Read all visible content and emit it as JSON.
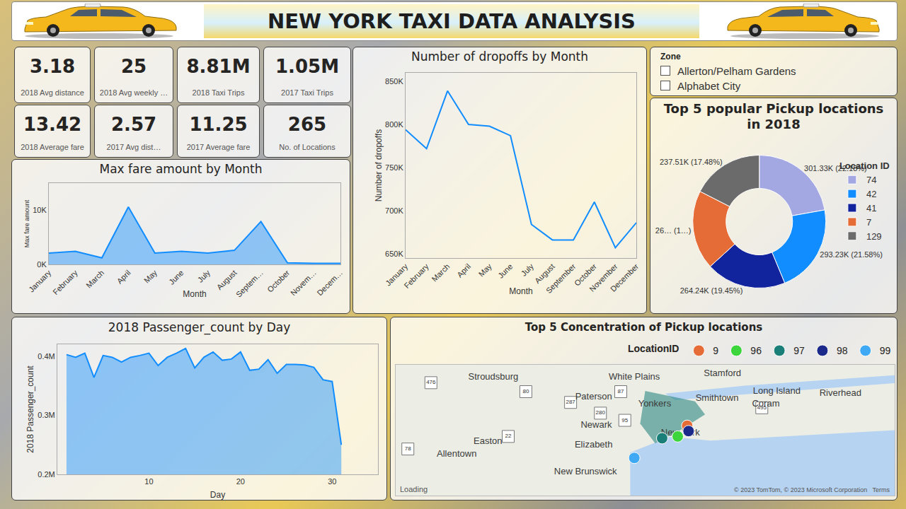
{
  "header": {
    "title": "NEW YORK TAXI DATA ANALYSIS"
  },
  "cards": [
    {
      "value": "3.18",
      "label": "2018 Avg distance"
    },
    {
      "value": "25",
      "label": "2018 Avg weekly …"
    },
    {
      "value": "8.81M",
      "label": "2018 Taxi Trips"
    },
    {
      "value": "1.05M",
      "label": "2017 Taxi Trips"
    },
    {
      "value": "13.42",
      "label": "2018 Average fare"
    },
    {
      "value": "2.57",
      "label": "2017 Avg dist…"
    },
    {
      "value": "11.25",
      "label": "2017 Average fare"
    },
    {
      "value": "265",
      "label": "No. of  Locations"
    }
  ],
  "slicer": {
    "title": "Zone",
    "items": [
      "Allerton/Pelham Gardens",
      "Alphabet City"
    ]
  },
  "chart_data": [
    {
      "type": "area",
      "title": "Max fare amount by Month",
      "x_label": "Month",
      "y_label": "Max fare amount",
      "categories": [
        "January",
        "February",
        "March",
        "April",
        "May",
        "June",
        "July",
        "August",
        "Septem…",
        "October",
        "Novem…",
        "Decem…"
      ],
      "values": [
        2100,
        2400,
        1200,
        10600,
        2100,
        2400,
        2100,
        2600,
        7900,
        300,
        200,
        200
      ],
      "color": "#118DFF",
      "ylim": [
        0,
        15000
      ],
      "yticks": [
        {
          "value": 0,
          "label": "0K"
        },
        {
          "value": 10000,
          "label": "10K"
        }
      ],
      "grid": false
    },
    {
      "type": "line",
      "title": "Number of dropoffs by Month",
      "x_label": "Month",
      "y_label": "Number of dropoffs",
      "categories": [
        "January",
        "February",
        "March",
        "April",
        "May",
        "June",
        "July",
        "August",
        "September",
        "October",
        "November",
        "December"
      ],
      "values": [
        794000,
        772000,
        839000,
        800000,
        798000,
        787000,
        684000,
        666000,
        666000,
        710000,
        657000,
        686000
      ],
      "color": "#118DFF",
      "ylim": [
        645000,
        860000
      ],
      "yticks": [
        {
          "value": 650000,
          "label": "650K"
        },
        {
          "value": 700000,
          "label": "700K"
        },
        {
          "value": 750000,
          "label": "750K"
        },
        {
          "value": 800000,
          "label": "800K"
        },
        {
          "value": 850000,
          "label": "850K"
        }
      ],
      "grid": false
    },
    {
      "type": "donut",
      "title": "Top 5 popular Pickup locations in 2018",
      "legend_title": "Location ID",
      "legend": "right",
      "categories": [
        "74",
        "42",
        "41",
        "7",
        "129"
      ],
      "values": [
        301330,
        293230,
        264240,
        262300,
        237510
      ],
      "value_labels": [
        "301.33K (22.18%)",
        "293.23K (21.58%)",
        "264.24K (19.45%)",
        "26… (1…)",
        "237.51K (17.48%)"
      ],
      "colors": [
        "#A3A8E3",
        "#118DFF",
        "#12239E",
        "#E66C37",
        "#6B6B6B"
      ],
      "data_labels": true
    },
    {
      "type": "area",
      "title": "2018 Passenger_count by Day",
      "x_label": "Day",
      "y_label": "2018 Passenger_count",
      "x": [
        1,
        2,
        3,
        4,
        5,
        6,
        7,
        8,
        9,
        10,
        11,
        12,
        13,
        14,
        15,
        16,
        17,
        18,
        19,
        20,
        21,
        22,
        23,
        24,
        25,
        26,
        27,
        28,
        29,
        30,
        31
      ],
      "values": [
        402500,
        398000,
        405000,
        364000,
        401000,
        398000,
        390000,
        398000,
        401000,
        405000,
        384000,
        398000,
        405000,
        413000,
        380000,
        398000,
        407000,
        393000,
        395000,
        407000,
        376000,
        378000,
        394000,
        371000,
        386000,
        386000,
        385000,
        381000,
        360000,
        357000,
        250000
      ],
      "color": "#118DFF",
      "xlim": [
        0,
        35
      ],
      "xticks": [
        10,
        20,
        30
      ],
      "ylim": [
        200000,
        420000
      ],
      "yticks": [
        {
          "value": 200000,
          "label": "0.2M"
        },
        {
          "value": 300000,
          "label": "0.3M"
        },
        {
          "value": 400000,
          "label": "0.4M"
        }
      ],
      "grid": false
    },
    {
      "type": "map",
      "title": "Top 5 Concentration of Pickup locations",
      "legend_title": "LocationID",
      "legend": "top",
      "xlim": [
        -75.94,
        -72.26
      ],
      "ylim": [
        40.37,
        41.1
      ],
      "tick_labels": false,
      "series": [
        {
          "name": "9",
          "color": "#E66C37",
          "x": [
            -73.79
          ],
          "y": [
            40.76
          ]
        },
        {
          "name": "96",
          "color": "#3CD63C",
          "x": [
            -73.86
          ],
          "y": [
            40.7
          ]
        },
        {
          "name": "97",
          "color": "#1B7F79",
          "x": [
            -73.975
          ],
          "y": [
            40.69
          ]
        },
        {
          "name": "98",
          "color": "#1B2A8A",
          "x": [
            -73.78
          ],
          "y": [
            40.73
          ]
        },
        {
          "name": "99",
          "color": "#3FA9F5",
          "x": [
            -74.18
          ],
          "y": [
            40.58
          ]
        }
      ],
      "places": [
        {
          "name": "Stroudsburg",
          "x": -75.22,
          "y": 41.03
        },
        {
          "name": "White Plains",
          "x": -74.18,
          "y": 41.03
        },
        {
          "name": "Stamford",
          "x": -73.53,
          "y": 41.05
        },
        {
          "name": "Paterson",
          "x": -74.48,
          "y": 40.92
        },
        {
          "name": "Yonkers",
          "x": -74.03,
          "y": 40.88
        },
        {
          "name": "Smithtown",
          "x": -73.57,
          "y": 40.91
        },
        {
          "name": "Long Island",
          "x": -73.13,
          "y": 40.95
        },
        {
          "name": "Coram",
          "x": -73.21,
          "y": 40.88
        },
        {
          "name": "Riverhead",
          "x": -72.66,
          "y": 40.94
        },
        {
          "name": "Newark",
          "x": -74.46,
          "y": 40.76
        },
        {
          "name": "New York",
          "x": -73.84,
          "y": 40.72
        },
        {
          "name": "Easton",
          "x": -75.26,
          "y": 40.67
        },
        {
          "name": "Elizabeth",
          "x": -74.48,
          "y": 40.65
        },
        {
          "name": "Allentown",
          "x": -75.49,
          "y": 40.6
        },
        {
          "name": "New Brunswick",
          "x": -74.54,
          "y": 40.5
        }
      ],
      "roads": [
        {
          "name": "476",
          "x": -75.68,
          "y": 41.0
        },
        {
          "name": "80",
          "x": -74.98,
          "y": 40.95
        },
        {
          "name": "287",
          "x": -74.65,
          "y": 40.89
        },
        {
          "name": "87",
          "x": -74.28,
          "y": 40.95
        },
        {
          "name": "280",
          "x": -74.43,
          "y": 40.83
        },
        {
          "name": "95",
          "x": -74.25,
          "y": 40.79
        },
        {
          "name": "495",
          "x": -73.24,
          "y": 40.86
        },
        {
          "name": "78",
          "x": -75.85,
          "y": 40.63
        },
        {
          "name": "22",
          "x": -75.11,
          "y": 40.7
        }
      ],
      "status_text": "Loading",
      "attribution": "© 2023 TomTom, © 2023 Microsoft Corporation",
      "terms": "Terms"
    }
  ]
}
